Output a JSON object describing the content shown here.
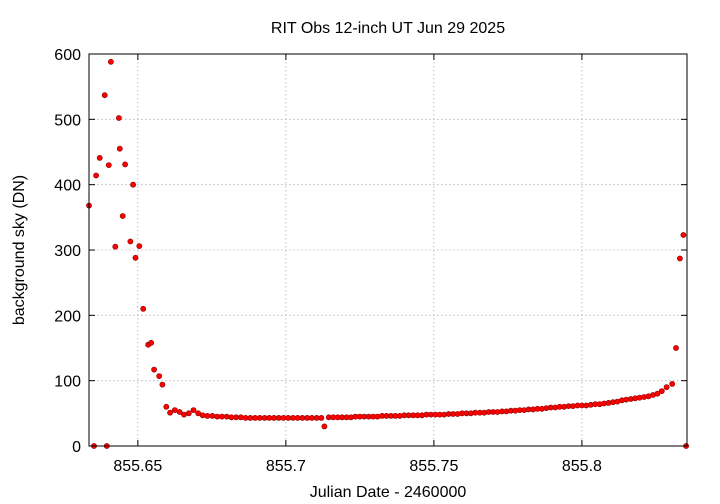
{
  "chart_data": {
    "type": "scatter",
    "title": "RIT Obs 12-inch UT Jun 29 2025",
    "xlabel": "Julian Date - 2460000",
    "ylabel": "background sky (DN)",
    "xlim": [
      855.6335,
      855.8355
    ],
    "ylim": [
      0,
      600
    ],
    "xticks": [
      855.65,
      855.7,
      855.75,
      855.8
    ],
    "xtick_labels": [
      "855.65",
      "855.7",
      "855.75",
      "855.8"
    ],
    "yticks": [
      0,
      100,
      200,
      300,
      400,
      500,
      600
    ],
    "ytick_labels": [
      "0",
      "100",
      "200",
      "300",
      "400",
      "500",
      "600"
    ],
    "grid": true,
    "legend": "none",
    "marker_color": "#ff0000",
    "series": [
      {
        "x": [
          855.6335,
          855.6352,
          855.6359,
          855.6371,
          855.6388,
          855.6395,
          855.6402,
          855.6409,
          855.6424,
          855.6436,
          855.6439,
          855.6449,
          855.6457,
          855.6475,
          855.6484,
          855.6492,
          855.6505,
          855.6518,
          855.6535,
          855.6545,
          855.6555,
          855.6572,
          855.6583,
          855.6596,
          855.6609,
          855.6625,
          855.6641,
          855.6656,
          855.6672,
          855.6688,
          855.6704,
          855.6719,
          855.6735,
          855.6752,
          855.6768,
          855.6784,
          855.68,
          855.6816,
          855.6832,
          855.6848,
          855.6864,
          855.688,
          855.6896,
          855.6912,
          855.6928,
          855.6944,
          855.696,
          855.6976,
          855.6992,
          855.7008,
          855.7024,
          855.704,
          855.7056,
          855.7072,
          855.7088,
          855.7104,
          855.712,
          855.713,
          855.7145,
          855.716,
          855.7175,
          855.719,
          855.7205,
          855.722,
          855.7235,
          855.725,
          855.7265,
          855.728,
          855.7295,
          855.731,
          855.7325,
          855.734,
          855.7355,
          855.737,
          855.7385,
          855.74,
          855.7415,
          855.743,
          855.7445,
          855.746,
          855.7475,
          855.749,
          855.7505,
          855.752,
          855.7535,
          855.755,
          855.7565,
          855.758,
          855.7595,
          855.761,
          855.7625,
          855.764,
          855.7655,
          855.767,
          855.7685,
          855.77,
          855.7715,
          855.773,
          855.7745,
          855.776,
          855.7775,
          855.779,
          855.7805,
          855.782,
          855.7835,
          855.785,
          855.7865,
          855.788,
          855.7895,
          855.791,
          855.7925,
          855.794,
          855.7955,
          855.797,
          855.7985,
          855.8,
          855.8015,
          855.803,
          855.8045,
          855.806,
          855.8075,
          855.809,
          855.8105,
          855.812,
          855.8135,
          855.815,
          855.8165,
          855.818,
          855.8195,
          855.821,
          855.8225,
          855.824,
          855.8255,
          855.827,
          855.8286,
          855.8305,
          855.8318,
          855.8331,
          855.8343,
          855.8352
        ],
        "y": [
          368,
          0,
          414,
          441,
          537,
          0,
          430,
          588,
          305,
          502,
          455,
          352,
          431,
          313,
          400,
          288,
          306,
          210,
          155,
          158,
          117,
          107,
          94,
          60,
          51,
          55,
          52,
          48,
          50,
          55,
          50,
          47,
          46,
          46,
          45,
          45,
          45,
          44,
          44,
          44,
          43,
          43,
          43,
          43,
          43,
          43,
          43,
          43,
          43,
          43,
          43,
          43,
          43,
          43,
          43,
          43,
          43,
          30,
          44,
          44,
          44,
          44,
          44,
          44,
          45,
          45,
          45,
          45,
          45,
          45,
          46,
          46,
          46,
          46,
          46,
          47,
          47,
          47,
          47,
          47,
          48,
          48,
          48,
          48,
          48,
          49,
          49,
          49,
          50,
          50,
          50,
          51,
          51,
          51,
          52,
          52,
          52,
          53,
          53,
          54,
          54,
          55,
          55,
          56,
          56,
          57,
          57,
          58,
          59,
          59,
          60,
          60,
          61,
          61,
          62,
          62,
          62,
          63,
          64,
          64,
          65,
          66,
          67,
          68,
          70,
          71,
          72,
          73,
          74,
          75,
          76,
          78,
          80,
          84,
          90,
          95,
          150,
          287,
          323,
          0
        ]
      }
    ]
  }
}
